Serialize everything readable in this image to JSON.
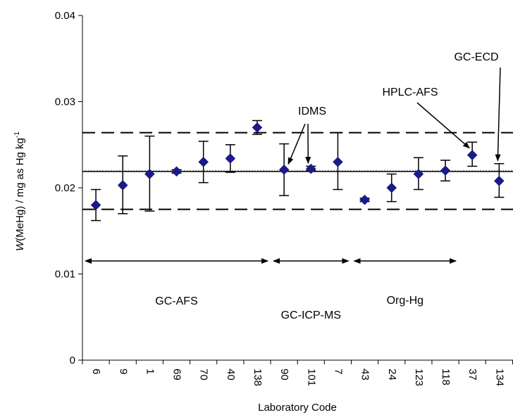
{
  "chart_data": {
    "type": "scatter",
    "title": "",
    "xlabel": "Laboratory Code",
    "ylabel": {
      "var": "W",
      "rest": "(MeHg) / mg as Hg  kg",
      "sup": "-1"
    },
    "ylim": [
      0,
      0.04
    ],
    "yticks": [
      "0",
      "0.01",
      "0.02",
      "0.03",
      "0.04"
    ],
    "categories": [
      "6",
      "9",
      "1",
      "69",
      "70",
      "40",
      "138",
      "90",
      "101",
      "7",
      "43",
      "24",
      "123",
      "118",
      "37",
      "134"
    ],
    "series": [
      {
        "values": [
          0.018,
          0.0203,
          0.0216,
          0.0219,
          0.023,
          0.0234,
          0.027,
          0.0221,
          0.0222,
          0.023,
          0.0186,
          0.02,
          0.0216,
          0.022,
          0.0238,
          0.0208
        ],
        "error_low": [
          0.0162,
          0.017,
          0.0173,
          0.0217,
          0.0206,
          0.0218,
          0.0262,
          0.0191,
          0.022,
          0.0198,
          0.0184,
          0.0184,
          0.0198,
          0.0208,
          0.0225,
          0.0189
        ],
        "error_high": [
          0.0198,
          0.0237,
          0.026,
          0.0221,
          0.0254,
          0.025,
          0.0278,
          0.0251,
          0.0225,
          0.0264,
          0.0188,
          0.0216,
          0.0235,
          0.0232,
          0.0253,
          0.0228
        ],
        "color": "#1a1a8c"
      }
    ],
    "reference_lines": {
      "mean": 0.0219,
      "upper": 0.0264,
      "lower": 0.0175
    },
    "groups": [
      {
        "label": "GC-AFS",
        "from": "6",
        "to": "138"
      },
      {
        "label": "GC-ICP-MS",
        "from": "90",
        "to": "7"
      },
      {
        "label": "Org-Hg",
        "from": "43",
        "to": "118"
      }
    ],
    "annotations": [
      {
        "label": "IDMS",
        "points": [
          "90",
          "101"
        ]
      },
      {
        "label": "HPLC-AFS",
        "points": [
          "37"
        ]
      },
      {
        "label": "GC-ECD",
        "points": [
          "134"
        ]
      }
    ],
    "grid": false,
    "legend": "none"
  }
}
